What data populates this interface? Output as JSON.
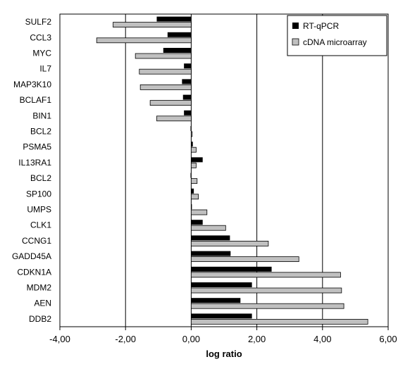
{
  "chart_data": {
    "type": "bar",
    "orientation": "horizontal",
    "xlabel": "log ratio",
    "xlim": [
      -4,
      6
    ],
    "xticks": [
      -4,
      -2,
      0,
      2,
      4,
      6
    ],
    "xtick_labels": [
      "-4,00",
      "-2,00",
      "0,00",
      "2,00",
      "4,00",
      "6,00"
    ],
    "grid": "vertical major gridlines",
    "legend_position": "top-right",
    "categories": [
      "SULF2",
      "CCL3",
      "MYC",
      "IL7",
      "MAP3K10",
      "BCLAF1",
      "BIN1",
      "BCL2",
      "PSMA5",
      "IL13RA1",
      "BCL2",
      "SP100",
      "UMPS",
      "CLK1",
      "CCNG1",
      "GADD45A",
      "CDKN1A",
      "MDM2",
      "AEN",
      "DDB2"
    ],
    "series": [
      {
        "name": "RT-qPCR",
        "color": "#000000",
        "values": [
          -1.05,
          -0.72,
          -0.85,
          -0.22,
          -0.28,
          -0.25,
          -0.22,
          -0.02,
          0.05,
          0.35,
          -0.02,
          0.08,
          0.02,
          0.35,
          1.18,
          1.2,
          2.45,
          1.85,
          1.5,
          1.85
        ]
      },
      {
        "name": "cDNA microarray",
        "color": "#c0c0c0",
        "values": [
          -2.38,
          -2.88,
          -1.7,
          -1.58,
          -1.55,
          -1.25,
          -1.05,
          0.03,
          0.15,
          0.15,
          0.18,
          0.22,
          0.48,
          1.05,
          2.35,
          3.28,
          4.55,
          4.58,
          4.65,
          5.38
        ]
      }
    ]
  }
}
